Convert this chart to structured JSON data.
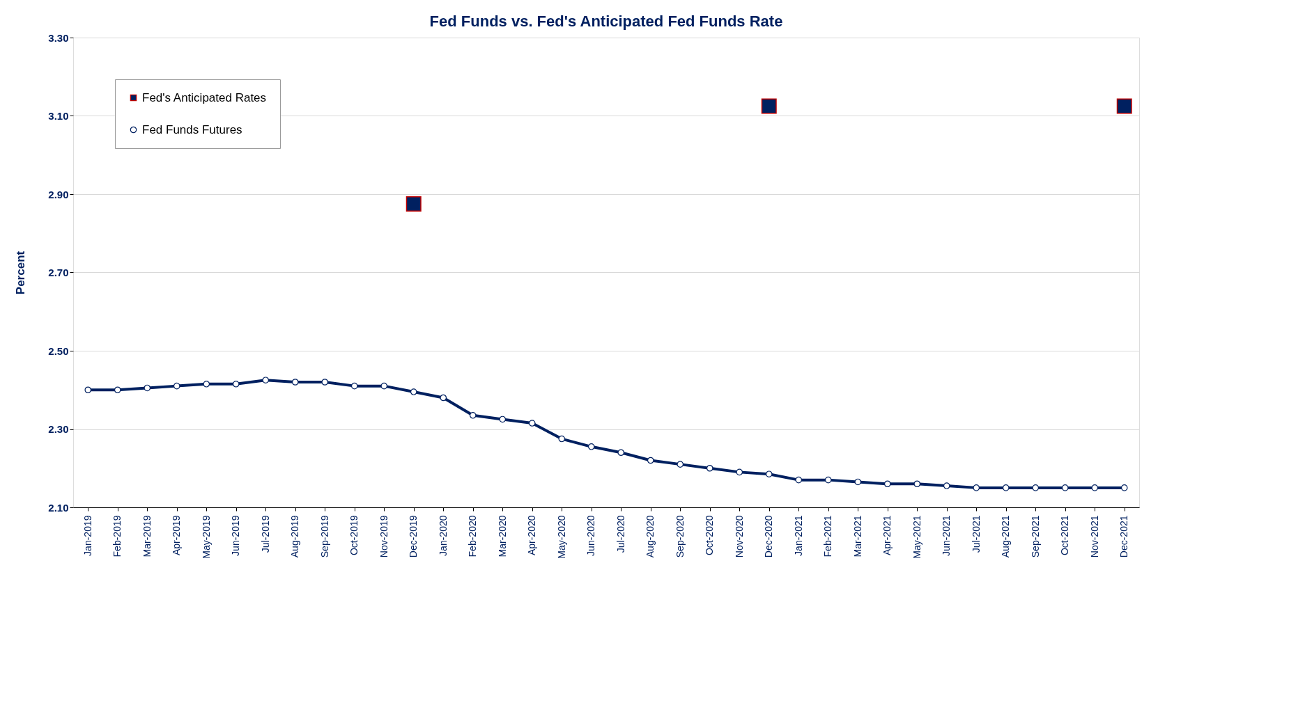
{
  "chart_data": {
    "type": "line",
    "title": "Fed Funds vs. Fed's Anticipated Fed Funds Rate",
    "ylabel": "Percent",
    "categories": [
      "Jan-2019",
      "Feb-2019",
      "Mar-2019",
      "Apr-2019",
      "May-2019",
      "Jun-2019",
      "Jul-2019",
      "Aug-2019",
      "Sep-2019",
      "Oct-2019",
      "Nov-2019",
      "Dec-2019",
      "Jan-2020",
      "Feb-2020",
      "Mar-2020",
      "Apr-2020",
      "May-2020",
      "Jun-2020",
      "Jul-2020",
      "Aug-2020",
      "Sep-2020",
      "Oct-2020",
      "Nov-2020",
      "Dec-2020",
      "Jan-2021",
      "Feb-2021",
      "Mar-2021",
      "Apr-2021",
      "May-2021",
      "Jun-2021",
      "Jul-2021",
      "Aug-2021",
      "Sep-2021",
      "Oct-2021",
      "Nov-2021",
      "Dec-2021"
    ],
    "series": [
      {
        "name": "Fed's Anticipated Rates",
        "type": "scatter",
        "marker": "square",
        "color": "#002060",
        "x": [
          "Dec-2019",
          "Dec-2020",
          "Dec-2021"
        ],
        "values": [
          2.875,
          3.125,
          3.125
        ]
      },
      {
        "name": "Fed Funds Futures",
        "marker": "circle",
        "color": "#002060",
        "values": [
          2.4,
          2.4,
          2.405,
          2.41,
          2.415,
          2.415,
          2.425,
          2.42,
          2.42,
          2.41,
          2.41,
          2.395,
          2.38,
          2.335,
          2.325,
          2.315,
          2.275,
          2.255,
          2.24,
          2.22,
          2.21,
          2.2,
          2.19,
          2.185,
          2.17,
          2.17,
          2.165,
          2.16,
          2.16,
          2.155,
          2.15,
          2.15,
          2.15,
          2.15,
          2.15,
          2.15
        ]
      }
    ],
    "ylim": [
      2.1,
      3.3
    ],
    "yticks": [
      {
        "value": 2.1,
        "label": "2.10"
      },
      {
        "value": 2.3,
        "label": "2.30"
      },
      {
        "value": 2.5,
        "label": "2.50"
      },
      {
        "value": 2.7,
        "label": "2.70"
      },
      {
        "value": 2.9,
        "label": "2.90"
      },
      {
        "value": 3.1,
        "label": "3.10"
      },
      {
        "value": 3.3,
        "label": "3.30"
      }
    ],
    "grid": "y",
    "legend": "top left"
  }
}
